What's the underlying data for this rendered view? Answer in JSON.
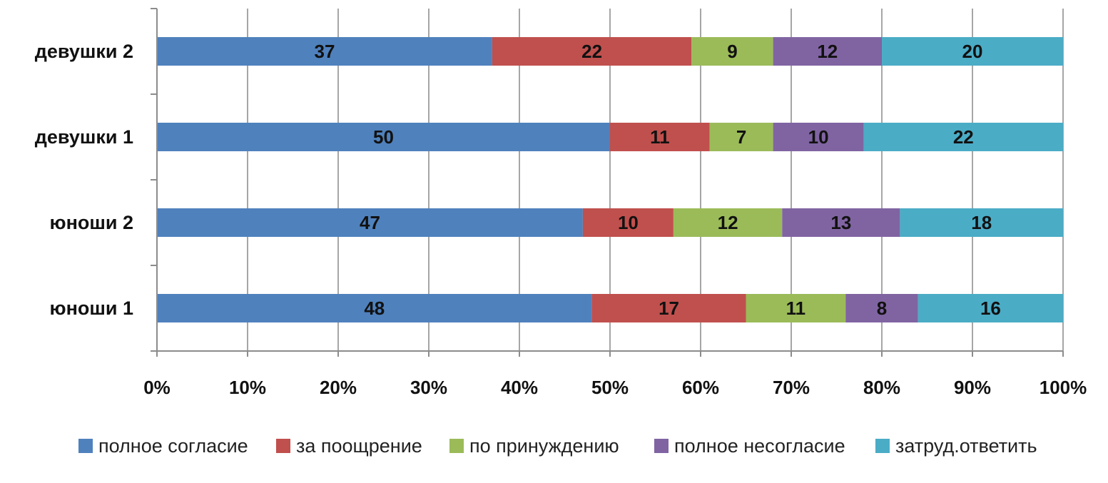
{
  "chart_data": {
    "type": "bar",
    "orientation": "horizontal",
    "stacked": "percent",
    "categories": [
      "юноши 1",
      "юноши 2",
      "девушки 1",
      "девушки 2"
    ],
    "series": [
      {
        "name": "полное согласие",
        "values": [
          48,
          47,
          50,
          37
        ],
        "color": "#4F81BD"
      },
      {
        "name": "за поощрение",
        "values": [
          17,
          10,
          11,
          22
        ],
        "color": "#C0504D"
      },
      {
        "name": "по принуждению",
        "values": [
          11,
          12,
          7,
          9
        ],
        "color": "#9BBB59"
      },
      {
        "name": "полное несогласие",
        "values": [
          8,
          13,
          10,
          12
        ],
        "color": "#8064A2"
      },
      {
        "name": "затруд.ответить",
        "values": [
          16,
          18,
          22,
          20
        ],
        "color": "#4BACC6"
      }
    ],
    "x_ticks": [
      "0%",
      "10%",
      "20%",
      "30%",
      "40%",
      "50%",
      "60%",
      "70%",
      "80%",
      "90%",
      "100%"
    ],
    "xlim": [
      0,
      100
    ],
    "grid": "vertical",
    "legend": "bottom",
    "title": "",
    "xlabel": "",
    "ylabel": ""
  }
}
